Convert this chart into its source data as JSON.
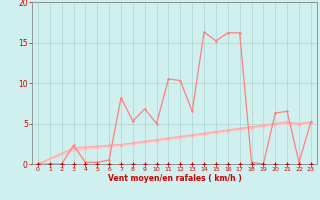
{
  "bg_color": "#cff0ee",
  "grid_color": "#aad4d0",
  "line_color_main": "#ff8080",
  "line_color_light1": "#ffaaaa",
  "line_color_light2": "#ffbbbb",
  "line_color_light3": "#ffcccc",
  "line_color_dots": "#cc0000",
  "xlabel": "Vent moyen/en rafales ( km/h )",
  "xlim": [
    -0.5,
    23.5
  ],
  "ylim": [
    0,
    20
  ],
  "yticks": [
    0,
    5,
    10,
    15,
    20
  ],
  "xticks": [
    0,
    1,
    2,
    3,
    4,
    5,
    6,
    7,
    8,
    9,
    10,
    11,
    12,
    13,
    14,
    15,
    16,
    17,
    18,
    19,
    20,
    21,
    22,
    23
  ],
  "series_jagged_x": [
    0,
    1,
    2,
    3,
    4,
    5,
    6,
    7,
    8,
    9,
    10,
    11,
    12,
    13,
    14,
    15,
    16,
    17,
    18,
    19,
    20,
    21,
    22,
    23
  ],
  "series_jagged_y": [
    0,
    0,
    0,
    2.3,
    0.2,
    0.2,
    0.5,
    8.2,
    5.3,
    6.8,
    5.0,
    10.5,
    10.3,
    6.5,
    16.3,
    15.2,
    16.2,
    16.2,
    0.2,
    0.0,
    6.3,
    6.5,
    0.2,
    5.2
  ],
  "series_linear1_x": [
    0,
    3,
    4,
    5,
    6,
    7,
    8,
    9,
    10,
    11,
    12,
    13,
    14,
    15,
    16,
    17,
    18,
    19,
    20,
    21,
    22,
    23
  ],
  "series_linear1_y": [
    0,
    2.0,
    2.1,
    2.2,
    2.3,
    2.4,
    2.6,
    2.8,
    3.0,
    3.2,
    3.4,
    3.6,
    3.8,
    4.0,
    4.2,
    4.4,
    4.6,
    4.8,
    5.0,
    5.2,
    5.0,
    5.2
  ],
  "series_linear2_x": [
    0,
    3,
    4,
    5,
    6,
    7,
    8,
    9,
    10,
    11,
    12,
    13,
    14,
    15,
    16,
    17,
    18,
    19,
    20,
    21,
    22,
    23
  ],
  "series_linear2_y": [
    0,
    1.8,
    1.95,
    2.1,
    2.25,
    2.4,
    2.55,
    2.7,
    2.9,
    3.1,
    3.3,
    3.5,
    3.7,
    3.9,
    4.1,
    4.3,
    4.5,
    4.7,
    4.9,
    5.1,
    4.9,
    5.1
  ],
  "series_linear3_x": [
    0,
    3,
    4,
    5,
    6,
    7,
    8,
    9,
    10,
    11,
    12,
    13,
    14,
    15,
    16,
    17,
    18,
    19,
    20,
    21,
    22,
    23
  ],
  "series_linear3_y": [
    0,
    1.6,
    1.78,
    1.95,
    2.1,
    2.25,
    2.4,
    2.6,
    2.8,
    3.0,
    3.2,
    3.4,
    3.6,
    3.8,
    4.0,
    4.2,
    4.4,
    4.6,
    4.8,
    5.0,
    4.75,
    5.05
  ],
  "dots_x": [
    0,
    1,
    2,
    3,
    4,
    5,
    6,
    7,
    8,
    9,
    10,
    11,
    12,
    13,
    14,
    15,
    16,
    17,
    18,
    19,
    20,
    21,
    22,
    23
  ],
  "dots_y": [
    0,
    0,
    0,
    0,
    0,
    0,
    0,
    0,
    0,
    0,
    0,
    0,
    0,
    0,
    0,
    0,
    0,
    0,
    0,
    0,
    0,
    0,
    0,
    0
  ]
}
